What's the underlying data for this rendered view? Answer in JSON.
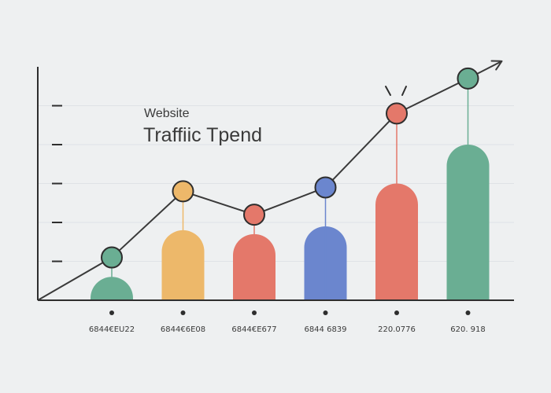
{
  "chart_data": {
    "type": "bar",
    "title_line1": "Website",
    "title_line2": "Traffiic Tpend",
    "categories": [
      "6844€EU22",
      "6844€6E08",
      "6844€E677",
      "6844 6839",
      "220.0776",
      "620. 918"
    ],
    "values": [
      6,
      18,
      17,
      19,
      30,
      40
    ],
    "trend_values": [
      11,
      28,
      22,
      29,
      48,
      57
    ],
    "ylim": [
      0,
      60
    ],
    "grid": true,
    "colors": [
      "#6aae93",
      "#edb86a",
      "#e4786a",
      "#6b86ce",
      "#e4786a",
      "#6aae93"
    ],
    "trend_line_color": "#3a3a3a"
  }
}
